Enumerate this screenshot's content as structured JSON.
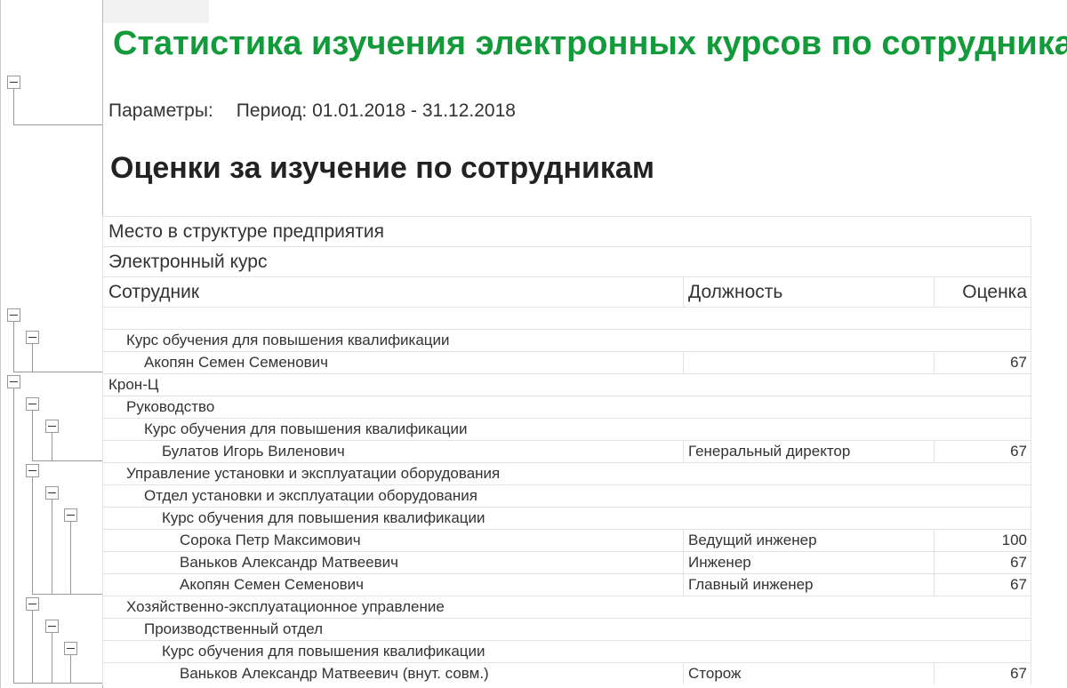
{
  "report": {
    "title": "Статистика изучения электронных курсов по сотрудникам",
    "params_label": "Параметры:",
    "params_value": "Период: 01.01.2018 - 31.12.2018",
    "subtitle": "Оценки за изучение по сотрудникам"
  },
  "table": {
    "headers": {
      "structure": "Место в структуре предприятия",
      "course": "Электронный курс",
      "employee": "Сотрудник",
      "position": "Должность",
      "score": "Оценка"
    },
    "rows": [
      {
        "level": 0,
        "group": true,
        "name": "",
        "position": "",
        "score": ""
      },
      {
        "level": 1,
        "group": true,
        "name": "Курс обучения для повышения квалификации",
        "position": "",
        "score": ""
      },
      {
        "level": 2,
        "group": false,
        "name": "Акопян Семен Семенович",
        "position": "",
        "score": "67"
      },
      {
        "level": 0,
        "group": true,
        "name": "Крон-Ц",
        "position": "",
        "score": ""
      },
      {
        "level": 1,
        "group": true,
        "name": "Руководство",
        "position": "",
        "score": ""
      },
      {
        "level": 2,
        "group": true,
        "name": "Курс обучения для повышения квалификации",
        "position": "",
        "score": ""
      },
      {
        "level": 3,
        "group": false,
        "name": "Булатов Игорь Виленович",
        "position": "Генеральный директор",
        "score": "67"
      },
      {
        "level": 1,
        "group": true,
        "name": "Управление установки и эксплуатации оборудования",
        "position": "",
        "score": ""
      },
      {
        "level": 2,
        "group": true,
        "name": "Отдел установки и эксплуатации оборудования",
        "position": "",
        "score": ""
      },
      {
        "level": 3,
        "group": true,
        "name": "Курс обучения для повышения квалификации",
        "position": "",
        "score": ""
      },
      {
        "level": 4,
        "group": false,
        "name": "Сорока Петр Максимович",
        "position": "Ведущий инженер",
        "score": "100"
      },
      {
        "level": 4,
        "group": false,
        "name": "Ваньков Александр Матвеевич",
        "position": "Инженер",
        "score": "67"
      },
      {
        "level": 4,
        "group": false,
        "name": "Акопян Семен Семенович",
        "position": "Главный инженер",
        "score": "67"
      },
      {
        "level": 1,
        "group": true,
        "name": "Хозяйственно-эксплуатационное управление",
        "position": "",
        "score": ""
      },
      {
        "level": 2,
        "group": true,
        "name": "Производственный отдел",
        "position": "",
        "score": ""
      },
      {
        "level": 3,
        "group": true,
        "name": "Курс обучения для повышения квалификации",
        "position": "",
        "score": ""
      },
      {
        "level": 4,
        "group": false,
        "name": "Ваньков Александр Матвеевич (внут. совм.)",
        "position": "Сторож",
        "score": "67"
      }
    ]
  }
}
